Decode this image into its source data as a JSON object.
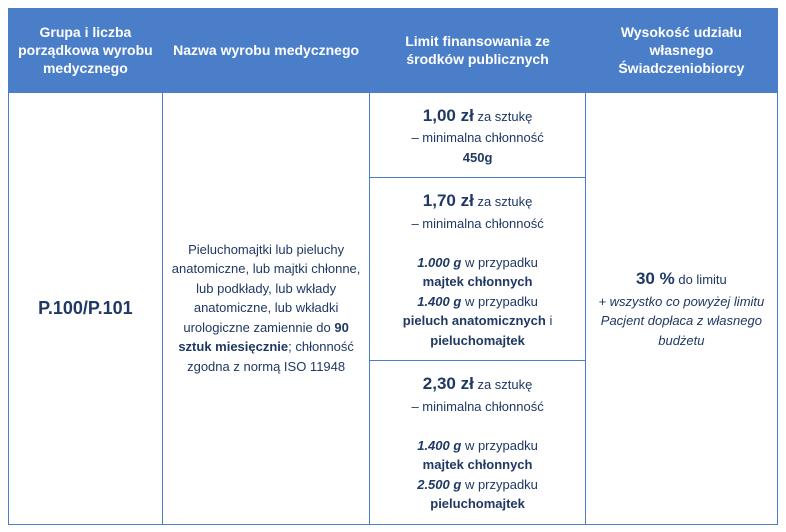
{
  "headers": {
    "col1": "Grupa i liczba porządkowa wyrobu medycznego",
    "col2": "Nazwa wyrobu medycznego",
    "col3": "Limit finansowania ze środków publicznych",
    "col4": "Wysokość udziału własnego Świadczeniobiorcy"
  },
  "code": "P.100/P.101",
  "description": {
    "main_text": "Pieluchomajtki lub pieluchy anatomiczne, lub majtki chłonne, lub podkłady, lub wkłady anatomiczne, lub wkładki urologiczne zamiennie do",
    "bold_qty": "90 sztuk miesięcznie",
    "after_text": "; chłonność zgodna z normą ISO 11948"
  },
  "tiers": {
    "tier1": {
      "price": "1,00 zł",
      "per": "za sztukę",
      "label": "– minimalna chłonność",
      "weight": "450g"
    },
    "tier2": {
      "price": "1,70 zł",
      "per": "za sztukę",
      "label": "– minimalna chłonność",
      "line1_weight": "1.000 g",
      "line1_text": "w przypadku",
      "line1_product": "majtek chłonnych",
      "line2_weight": "1.400 g",
      "line2_text": "w przypadku",
      "line2_product1": "pieluch anatomicznych",
      "line2_and": "i",
      "line2_product2": "pieluchomajtek"
    },
    "tier3": {
      "price": "2,30 zł",
      "per": "za sztukę",
      "label": "– minimalna chłonność",
      "line1_weight": "1.400 g",
      "line1_text": "w przypadku",
      "line1_product": "majtek chłonnych",
      "line2_weight": "2.500 g",
      "line2_text": "w przypadku",
      "line2_product": "pieluchomajtek"
    }
  },
  "copay": {
    "percent": "30 %",
    "to_limit": "do limitu",
    "plus_text": "+ wszystko co powyżej limitu Pacjent dopłaca z własnego budżetu"
  },
  "colors": {
    "header_bg": "#4a7ec9",
    "header_text": "#ffffff",
    "border": "#4a7ec9",
    "body_text": "#1f3864"
  }
}
